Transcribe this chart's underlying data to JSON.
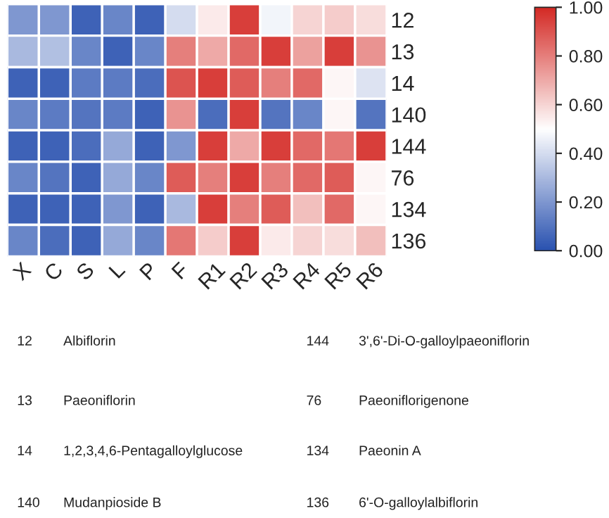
{
  "chart_data": {
    "type": "heatmap",
    "categories": [
      "X",
      "C",
      "S",
      "L",
      "P",
      "F",
      "R1",
      "R2",
      "R3",
      "R4",
      "R5",
      "R6"
    ],
    "y_categories": [
      "12",
      "13",
      "14",
      "140",
      "144",
      "76",
      "134",
      "136"
    ],
    "cells": [
      [
        0.2,
        0.2,
        0.05,
        0.15,
        0.05,
        0.4,
        0.55,
        0.95,
        0.47,
        0.6,
        0.62,
        0.58
      ],
      [
        0.3,
        0.32,
        0.15,
        0.05,
        0.15,
        0.8,
        0.7,
        0.85,
        0.95,
        0.72,
        0.95,
        0.75
      ],
      [
        0.05,
        0.05,
        0.12,
        0.12,
        0.08,
        0.9,
        0.95,
        0.88,
        0.8,
        0.85,
        0.52,
        0.42
      ],
      [
        0.15,
        0.12,
        0.1,
        0.12,
        0.05,
        0.75,
        0.08,
        0.95,
        0.1,
        0.15,
        0.52,
        0.1
      ],
      [
        0.05,
        0.05,
        0.08,
        0.25,
        0.05,
        0.2,
        0.95,
        0.7,
        0.95,
        0.85,
        0.82,
        0.95
      ],
      [
        0.15,
        0.1,
        0.05,
        0.25,
        0.15,
        0.88,
        0.8,
        0.95,
        0.8,
        0.85,
        0.88,
        0.52
      ],
      [
        0.05,
        0.05,
        0.05,
        0.2,
        0.05,
        0.3,
        0.95,
        0.8,
        0.88,
        0.65,
        0.85,
        0.52
      ],
      [
        0.15,
        0.08,
        0.05,
        0.25,
        0.15,
        0.82,
        0.62,
        0.95,
        0.55,
        0.6,
        0.58,
        0.65
      ]
    ],
    "clim": [
      0,
      1
    ],
    "cticks": [
      {
        "value": 0,
        "label": "0.00"
      },
      {
        "value": 0.2,
        "label": "0.20"
      },
      {
        "value": 0.4,
        "label": "0.40"
      },
      {
        "value": 0.6,
        "label": "0.60"
      },
      {
        "value": 0.8,
        "label": "0.80"
      },
      {
        "value": 1,
        "label": "1.00"
      }
    ],
    "annotations": [
      "12",
      "Albiflorin",
      "144",
      "3',6'-Di-O-galloylpaeoniflorin",
      "13",
      "Paeoniflorin",
      "76",
      "Paeoniflorigenone",
      "14",
      "1,2,3,4,6-Pentagalloylglucose",
      "134",
      "Paeonin A",
      "140",
      "Mudanpioside B",
      "136",
      "6'-O-galloylalbiflorin"
    ]
  }
}
